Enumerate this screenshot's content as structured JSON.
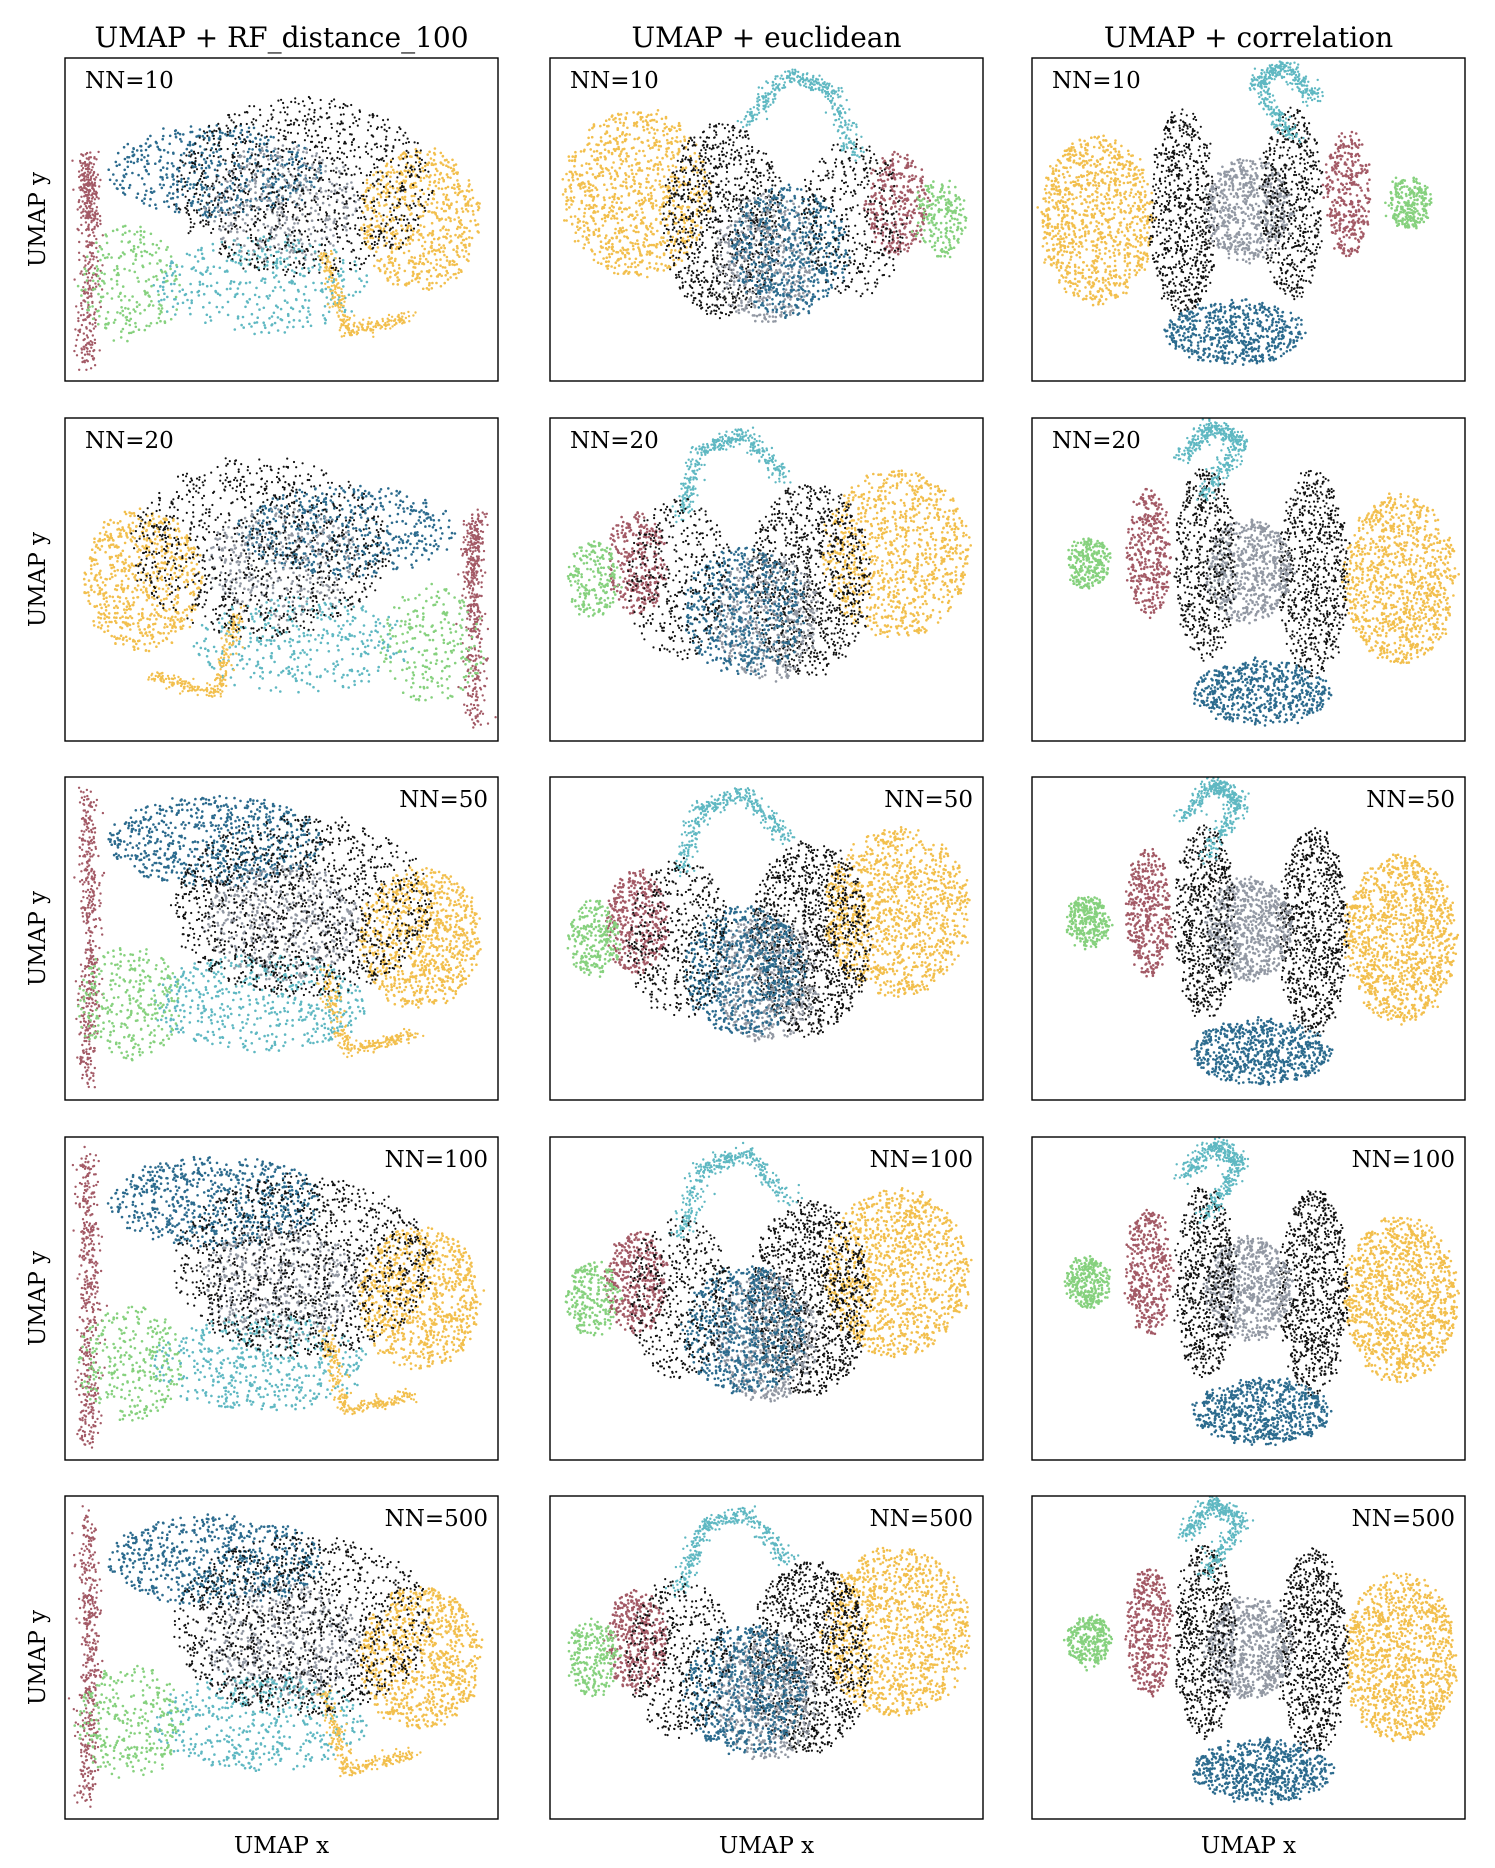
{
  "figure": {
    "columns": [
      {
        "title": "UMAP + RF_distance_100"
      },
      {
        "title": "UMAP + euclidean"
      },
      {
        "title": "UMAP + correlation"
      }
    ],
    "rows": [
      {
        "nn_label": "NN=10"
      },
      {
        "nn_label": "NN=20"
      },
      {
        "nn_label": "NN=50"
      },
      {
        "nn_label": "NN=100"
      },
      {
        "nn_label": "NN=500"
      }
    ],
    "ylabel": "UMAP y",
    "xlabel": "UMAP x",
    "colors": {
      "yellow": "#f2bf4d",
      "black": "#111111",
      "gray": "#9298a3",
      "dark_blue": "#2c6b8e",
      "teal": "#5fb8c2",
      "maroon": "#a35a66",
      "green": "#86d17e"
    }
  },
  "chart_data": {
    "type": "scatter",
    "description": "3x5 grid of UMAP embeddings; point colours encode clusters (no legend shown)",
    "grid": {
      "columns": 3,
      "rows": 5
    },
    "axes": {
      "ticks": "none"
    },
    "panels": [
      {
        "col": 0,
        "row": 0,
        "label": "NN=10",
        "label_pos": "top-left"
      },
      {
        "col": 1,
        "row": 0,
        "label": "NN=10",
        "label_pos": "top-left"
      },
      {
        "col": 2,
        "row": 0,
        "label": "NN=10",
        "label_pos": "top-left"
      },
      {
        "col": 0,
        "row": 1,
        "label": "NN=20",
        "label_pos": "top-left"
      },
      {
        "col": 1,
        "row": 1,
        "label": "NN=20",
        "label_pos": "top-left"
      },
      {
        "col": 2,
        "row": 1,
        "label": "NN=20",
        "label_pos": "top-left"
      },
      {
        "col": 0,
        "row": 2,
        "label": "NN=50",
        "label_pos": "top-right"
      },
      {
        "col": 1,
        "row": 2,
        "label": "NN=50",
        "label_pos": "top-right"
      },
      {
        "col": 2,
        "row": 2,
        "label": "NN=50",
        "label_pos": "top-right"
      },
      {
        "col": 0,
        "row": 3,
        "label": "NN=100",
        "label_pos": "top-right"
      },
      {
        "col": 1,
        "row": 3,
        "label": "NN=100",
        "label_pos": "top-right"
      },
      {
        "col": 2,
        "row": 3,
        "label": "NN=100",
        "label_pos": "top-right"
      },
      {
        "col": 0,
        "row": 4,
        "label": "NN=500",
        "label_pos": "top-right"
      },
      {
        "col": 1,
        "row": 4,
        "label": "NN=500",
        "label_pos": "top-right"
      },
      {
        "col": 2,
        "row": 4,
        "label": "NN=500",
        "label_pos": "top-right"
      }
    ]
  }
}
